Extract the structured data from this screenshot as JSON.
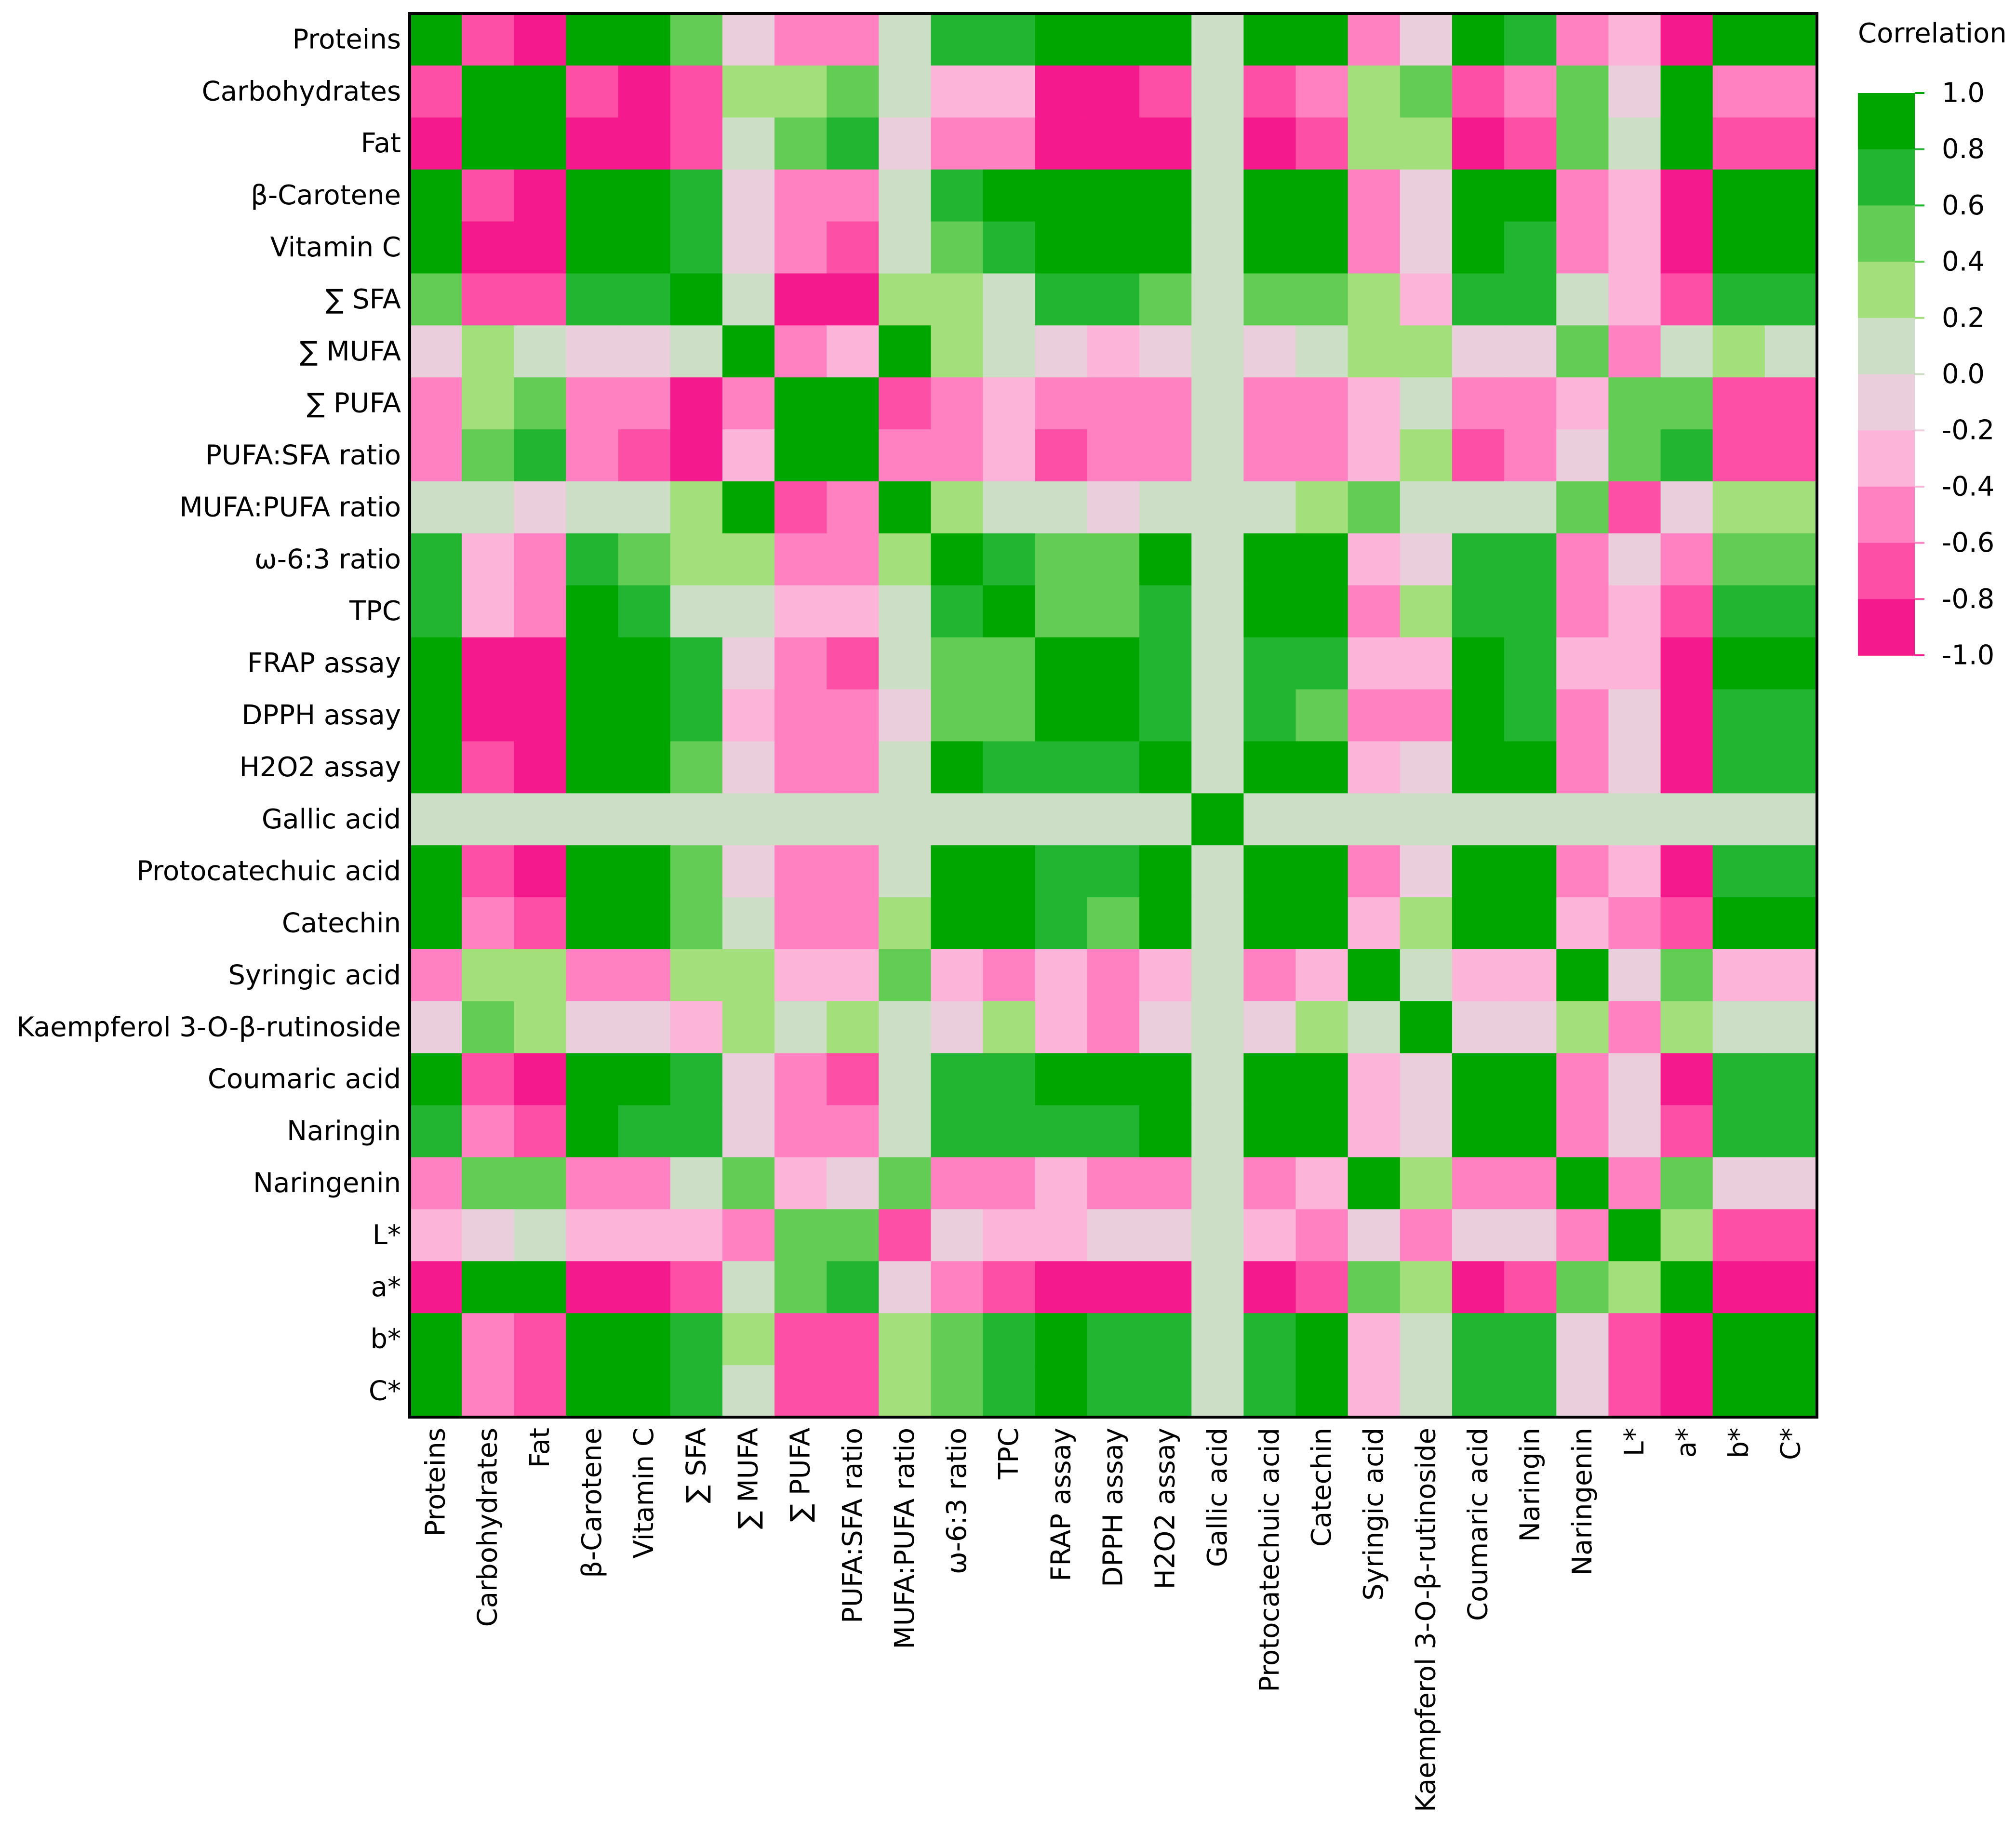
{
  "chart_data": {
    "type": "heatmap",
    "title": "",
    "xlabel": "",
    "ylabel": "",
    "variables": [
      "Proteins",
      "Carbohydrates",
      "Fat",
      "β-Carotene",
      "Vitamin C",
      "∑ SFA",
      "∑ MUFA",
      "∑ PUFA",
      "PUFA:SFA ratio",
      "MUFA:PUFA ratio",
      "ω-6:3 ratio",
      "TPC",
      "FRAP assay",
      "DPPH assay",
      "H2O2 assay",
      "Gallic acid",
      "Protocatechuic acid",
      "Catechin",
      "Syringic acid",
      "Kaempferol 3-O-β-rutinoside",
      "Coumaric acid",
      "Naringin",
      "Naringenin",
      "L*",
      "a*",
      "b*",
      "C*"
    ],
    "matrix": [
      [
        1.0,
        -0.7,
        -1.0,
        1.0,
        1.0,
        0.5,
        -0.1,
        -0.5,
        -0.5,
        0.0,
        0.7,
        0.7,
        1.0,
        1.0,
        1.0,
        0.0,
        1.0,
        1.0,
        -0.5,
        -0.1,
        1.0,
        0.7,
        -0.5,
        -0.3,
        -1.0,
        1.0,
        1.0
      ],
      [
        -0.7,
        1.0,
        1.0,
        -0.7,
        -1.0,
        -0.7,
        0.3,
        0.3,
        0.5,
        0.0,
        -0.3,
        -0.3,
        -1.0,
        -1.0,
        -0.7,
        0.0,
        -0.7,
        -0.5,
        0.3,
        0.5,
        -0.7,
        -0.5,
        0.5,
        -0.1,
        1.0,
        -0.5,
        -0.5
      ],
      [
        -1.0,
        1.0,
        1.0,
        -1.0,
        -1.0,
        -0.7,
        0.0,
        0.5,
        0.7,
        -0.1,
        -0.5,
        -0.5,
        -1.0,
        -1.0,
        -1.0,
        0.0,
        -1.0,
        -0.7,
        0.3,
        0.3,
        -1.0,
        -0.7,
        0.5,
        0.0,
        1.0,
        -0.7,
        -0.7
      ],
      [
        1.0,
        -0.7,
        -1.0,
        1.0,
        1.0,
        0.7,
        -0.1,
        -0.5,
        -0.5,
        0.0,
        0.7,
        1.0,
        1.0,
        1.0,
        1.0,
        0.0,
        1.0,
        1.0,
        -0.5,
        -0.1,
        1.0,
        1.0,
        -0.5,
        -0.3,
        -1.0,
        1.0,
        1.0
      ],
      [
        1.0,
        -1.0,
        -1.0,
        1.0,
        1.0,
        0.7,
        -0.1,
        -0.5,
        -0.7,
        0.0,
        0.5,
        0.7,
        1.0,
        1.0,
        1.0,
        0.0,
        1.0,
        1.0,
        -0.5,
        -0.1,
        1.0,
        0.7,
        -0.5,
        -0.3,
        -1.0,
        1.0,
        1.0
      ],
      [
        0.5,
        -0.7,
        -0.7,
        0.7,
        0.7,
        1.0,
        0.0,
        -1.0,
        -1.0,
        0.3,
        0.3,
        0.0,
        0.7,
        0.7,
        0.5,
        0.0,
        0.5,
        0.5,
        0.3,
        -0.3,
        0.7,
        0.7,
        0.0,
        -0.3,
        -0.7,
        0.7,
        0.7
      ],
      [
        -0.1,
        0.3,
        0.0,
        -0.1,
        -0.1,
        0.0,
        1.0,
        -0.5,
        -0.3,
        1.0,
        0.3,
        0.0,
        -0.1,
        -0.3,
        -0.1,
        0.0,
        -0.1,
        0.0,
        0.3,
        0.3,
        -0.1,
        -0.1,
        0.5,
        -0.5,
        0.0,
        0.3,
        0.0
      ],
      [
        -0.5,
        0.3,
        0.5,
        -0.5,
        -0.5,
        -1.0,
        -0.5,
        1.0,
        1.0,
        -0.7,
        -0.5,
        -0.3,
        -0.5,
        -0.5,
        -0.5,
        0.0,
        -0.5,
        -0.5,
        -0.3,
        0.0,
        -0.5,
        -0.5,
        -0.3,
        0.5,
        0.5,
        -0.7,
        -0.7
      ],
      [
        -0.5,
        0.5,
        0.7,
        -0.5,
        -0.7,
        -1.0,
        -0.3,
        1.0,
        1.0,
        -0.5,
        -0.5,
        -0.3,
        -0.7,
        -0.5,
        -0.5,
        0.0,
        -0.5,
        -0.5,
        -0.3,
        0.3,
        -0.7,
        -0.5,
        -0.1,
        0.5,
        0.7,
        -0.7,
        -0.7
      ],
      [
        0.0,
        0.0,
        -0.1,
        0.0,
        0.0,
        0.3,
        1.0,
        -0.7,
        -0.5,
        1.0,
        0.3,
        0.0,
        0.0,
        -0.1,
        0.0,
        0.0,
        0.0,
        0.3,
        0.5,
        0.0,
        0.0,
        0.0,
        0.5,
        -0.7,
        -0.1,
        0.3,
        0.3
      ],
      [
        0.7,
        -0.3,
        -0.5,
        0.7,
        0.5,
        0.3,
        0.3,
        -0.5,
        -0.5,
        0.3,
        1.0,
        0.7,
        0.5,
        0.5,
        1.0,
        0.0,
        1.0,
        1.0,
        -0.3,
        -0.1,
        0.7,
        0.7,
        -0.5,
        -0.1,
        -0.5,
        0.5,
        0.5
      ],
      [
        0.7,
        -0.3,
        -0.5,
        1.0,
        0.7,
        0.0,
        0.0,
        -0.3,
        -0.3,
        0.0,
        0.7,
        1.0,
        0.5,
        0.5,
        0.7,
        0.0,
        1.0,
        1.0,
        -0.5,
        0.3,
        0.7,
        0.7,
        -0.5,
        -0.3,
        -0.7,
        0.7,
        0.7
      ],
      [
        1.0,
        -1.0,
        -1.0,
        1.0,
        1.0,
        0.7,
        -0.1,
        -0.5,
        -0.7,
        0.0,
        0.5,
        0.5,
        1.0,
        1.0,
        0.7,
        0.0,
        0.7,
        0.7,
        -0.3,
        -0.3,
        1.0,
        0.7,
        -0.3,
        -0.3,
        -1.0,
        1.0,
        1.0
      ],
      [
        1.0,
        -1.0,
        -1.0,
        1.0,
        1.0,
        0.7,
        -0.3,
        -0.5,
        -0.5,
        -0.1,
        0.5,
        0.5,
        1.0,
        1.0,
        0.7,
        0.0,
        0.7,
        0.5,
        -0.5,
        -0.5,
        1.0,
        0.7,
        -0.5,
        -0.1,
        -1.0,
        0.7,
        0.7
      ],
      [
        1.0,
        -0.7,
        -1.0,
        1.0,
        1.0,
        0.5,
        -0.1,
        -0.5,
        -0.5,
        0.0,
        1.0,
        0.7,
        0.7,
        0.7,
        1.0,
        0.0,
        1.0,
        1.0,
        -0.3,
        -0.1,
        1.0,
        1.0,
        -0.5,
        -0.1,
        -1.0,
        0.7,
        0.7
      ],
      [
        0.0,
        0.0,
        0.0,
        0.0,
        0.0,
        0.0,
        0.0,
        0.0,
        0.0,
        0.0,
        0.0,
        0.0,
        0.0,
        0.0,
        0.0,
        1.0,
        0.0,
        0.0,
        0.0,
        0.0,
        0.0,
        0.0,
        0.0,
        0.0,
        0.0,
        0.0,
        0.0
      ],
      [
        1.0,
        -0.7,
        -1.0,
        1.0,
        1.0,
        0.5,
        -0.1,
        -0.5,
        -0.5,
        0.0,
        1.0,
        1.0,
        0.7,
        0.7,
        1.0,
        0.0,
        1.0,
        1.0,
        -0.5,
        -0.1,
        1.0,
        1.0,
        -0.5,
        -0.3,
        -1.0,
        0.7,
        0.7
      ],
      [
        1.0,
        -0.5,
        -0.7,
        1.0,
        1.0,
        0.5,
        0.0,
        -0.5,
        -0.5,
        0.3,
        1.0,
        1.0,
        0.7,
        0.5,
        1.0,
        0.0,
        1.0,
        1.0,
        -0.3,
        0.3,
        1.0,
        1.0,
        -0.3,
        -0.5,
        -0.7,
        1.0,
        1.0
      ],
      [
        -0.5,
        0.3,
        0.3,
        -0.5,
        -0.5,
        0.3,
        0.3,
        -0.3,
        -0.3,
        0.5,
        -0.3,
        -0.5,
        -0.3,
        -0.5,
        -0.3,
        0.0,
        -0.5,
        -0.3,
        1.0,
        0.0,
        -0.3,
        -0.3,
        1.0,
        -0.1,
        0.5,
        -0.3,
        -0.3
      ],
      [
        -0.1,
        0.5,
        0.3,
        -0.1,
        -0.1,
        -0.3,
        0.3,
        0.0,
        0.3,
        0.0,
        -0.1,
        0.3,
        -0.3,
        -0.5,
        -0.1,
        0.0,
        -0.1,
        0.3,
        0.0,
        1.0,
        -0.1,
        -0.1,
        0.3,
        -0.5,
        0.3,
        0.0,
        0.0
      ],
      [
        1.0,
        -0.7,
        -1.0,
        1.0,
        1.0,
        0.7,
        -0.1,
        -0.5,
        -0.7,
        0.0,
        0.7,
        0.7,
        1.0,
        1.0,
        1.0,
        0.0,
        1.0,
        1.0,
        -0.3,
        -0.1,
        1.0,
        1.0,
        -0.5,
        -0.1,
        -1.0,
        0.7,
        0.7
      ],
      [
        0.7,
        -0.5,
        -0.7,
        1.0,
        0.7,
        0.7,
        -0.1,
        -0.5,
        -0.5,
        0.0,
        0.7,
        0.7,
        0.7,
        0.7,
        1.0,
        0.0,
        1.0,
        1.0,
        -0.3,
        -0.1,
        1.0,
        1.0,
        -0.5,
        -0.1,
        -0.7,
        0.7,
        0.7
      ],
      [
        -0.5,
        0.5,
        0.5,
        -0.5,
        -0.5,
        0.0,
        0.5,
        -0.3,
        -0.1,
        0.5,
        -0.5,
        -0.5,
        -0.3,
        -0.5,
        -0.5,
        0.0,
        -0.5,
        -0.3,
        1.0,
        0.3,
        -0.5,
        -0.5,
        1.0,
        -0.5,
        0.5,
        -0.1,
        -0.1
      ],
      [
        -0.3,
        -0.1,
        0.0,
        -0.3,
        -0.3,
        -0.3,
        -0.5,
        0.5,
        0.5,
        -0.7,
        -0.1,
        -0.3,
        -0.3,
        -0.1,
        -0.1,
        0.0,
        -0.3,
        -0.5,
        -0.1,
        -0.5,
        -0.1,
        -0.1,
        -0.5,
        1.0,
        0.3,
        -0.7,
        -0.7
      ],
      [
        -1.0,
        1.0,
        1.0,
        -1.0,
        -1.0,
        -0.7,
        0.0,
        0.5,
        0.7,
        -0.1,
        -0.5,
        -0.7,
        -1.0,
        -1.0,
        -1.0,
        0.0,
        -1.0,
        -0.7,
        0.5,
        0.3,
        -1.0,
        -0.7,
        0.5,
        0.3,
        1.0,
        -1.0,
        -1.0
      ],
      [
        1.0,
        -0.5,
        -0.7,
        1.0,
        1.0,
        0.7,
        0.3,
        -0.7,
        -0.7,
        0.3,
        0.5,
        0.7,
        1.0,
        0.7,
        0.7,
        0.0,
        0.7,
        1.0,
        -0.3,
        0.0,
        0.7,
        0.7,
        -0.1,
        -0.7,
        -1.0,
        1.0,
        1.0
      ],
      [
        1.0,
        -0.5,
        -0.7,
        1.0,
        1.0,
        0.7,
        0.0,
        -0.7,
        -0.7,
        0.3,
        0.5,
        0.7,
        1.0,
        0.7,
        0.7,
        0.0,
        0.7,
        1.0,
        -0.3,
        0.0,
        0.7,
        0.7,
        -0.1,
        -0.7,
        -1.0,
        1.0,
        1.0
      ]
    ],
    "color_scale": {
      "title": "Correlation",
      "min": -1.0,
      "max": 1.0,
      "ticks": [
        "1.0",
        "0.8",
        "0.6",
        "0.4",
        "0.2",
        "0.0",
        "-0.2",
        "-0.4",
        "-0.6",
        "-0.8",
        "-1.0"
      ],
      "bins": [
        {
          "from": 0.9,
          "color": "#00A600"
        },
        {
          "from": 0.6,
          "color": "#22B532"
        },
        {
          "from": 0.4,
          "color": "#62CC54"
        },
        {
          "from": 0.2,
          "color": "#A3E07C"
        },
        {
          "from": -0.05,
          "color": "#CCDEC5"
        },
        {
          "from": -0.2,
          "color": "#EACEDB"
        },
        {
          "from": -0.4,
          "color": "#FCB4D9"
        },
        {
          "from": -0.6,
          "color": "#FF81C1"
        },
        {
          "from": -0.8,
          "color": "#FC4FA5"
        },
        {
          "from": -1.01,
          "color": "#F5198E"
        }
      ]
    }
  }
}
